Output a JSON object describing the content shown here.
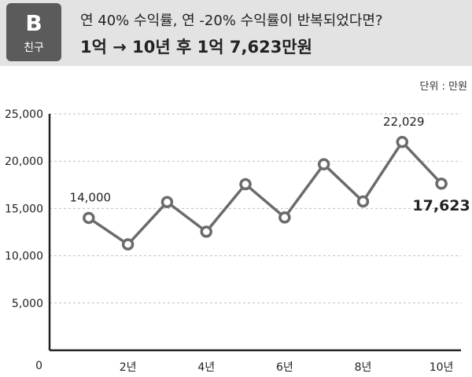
{
  "header": {
    "badge_letter": "B",
    "badge_sub": "친구",
    "title_line1": "연 40% 수익률, 연 -20% 수익률이 반복되었다면?",
    "title_line2": "1억 → 10년 후 1억 7,623만원"
  },
  "unit_label": "단위 : 만원",
  "colors": {
    "line": "#6b6b6b",
    "grid": "#bfbfbf",
    "header_bg": "#e3e3e3",
    "badge_bg": "#5b5b5b"
  },
  "chart_data": {
    "type": "line",
    "x": [
      1,
      2,
      3,
      4,
      5,
      6,
      7,
      8,
      9,
      10
    ],
    "x_tick_labels": [
      "2년",
      "4년",
      "6년",
      "8년",
      "10년"
    ],
    "x_tick_values": [
      2,
      4,
      6,
      8,
      10
    ],
    "y_tick_labels": [
      "0",
      "5,000",
      "10,000",
      "15,000",
      "20,000",
      "25,000"
    ],
    "y_tick_values": [
      0,
      5000,
      10000,
      15000,
      20000,
      25000
    ],
    "values": [
      14000,
      11200,
      15680,
      12544,
      17562,
      14049,
      19669,
      15735,
      22029,
      17623
    ],
    "ylim": [
      0,
      25000
    ],
    "xlim": [
      0,
      10.5
    ],
    "grid": true,
    "annotations": [
      {
        "x": 1,
        "text": "14,000",
        "style": "normal"
      },
      {
        "x": 9,
        "text": "22,029",
        "style": "normal"
      },
      {
        "x": 10,
        "text": "17,623",
        "style": "bold"
      }
    ]
  }
}
